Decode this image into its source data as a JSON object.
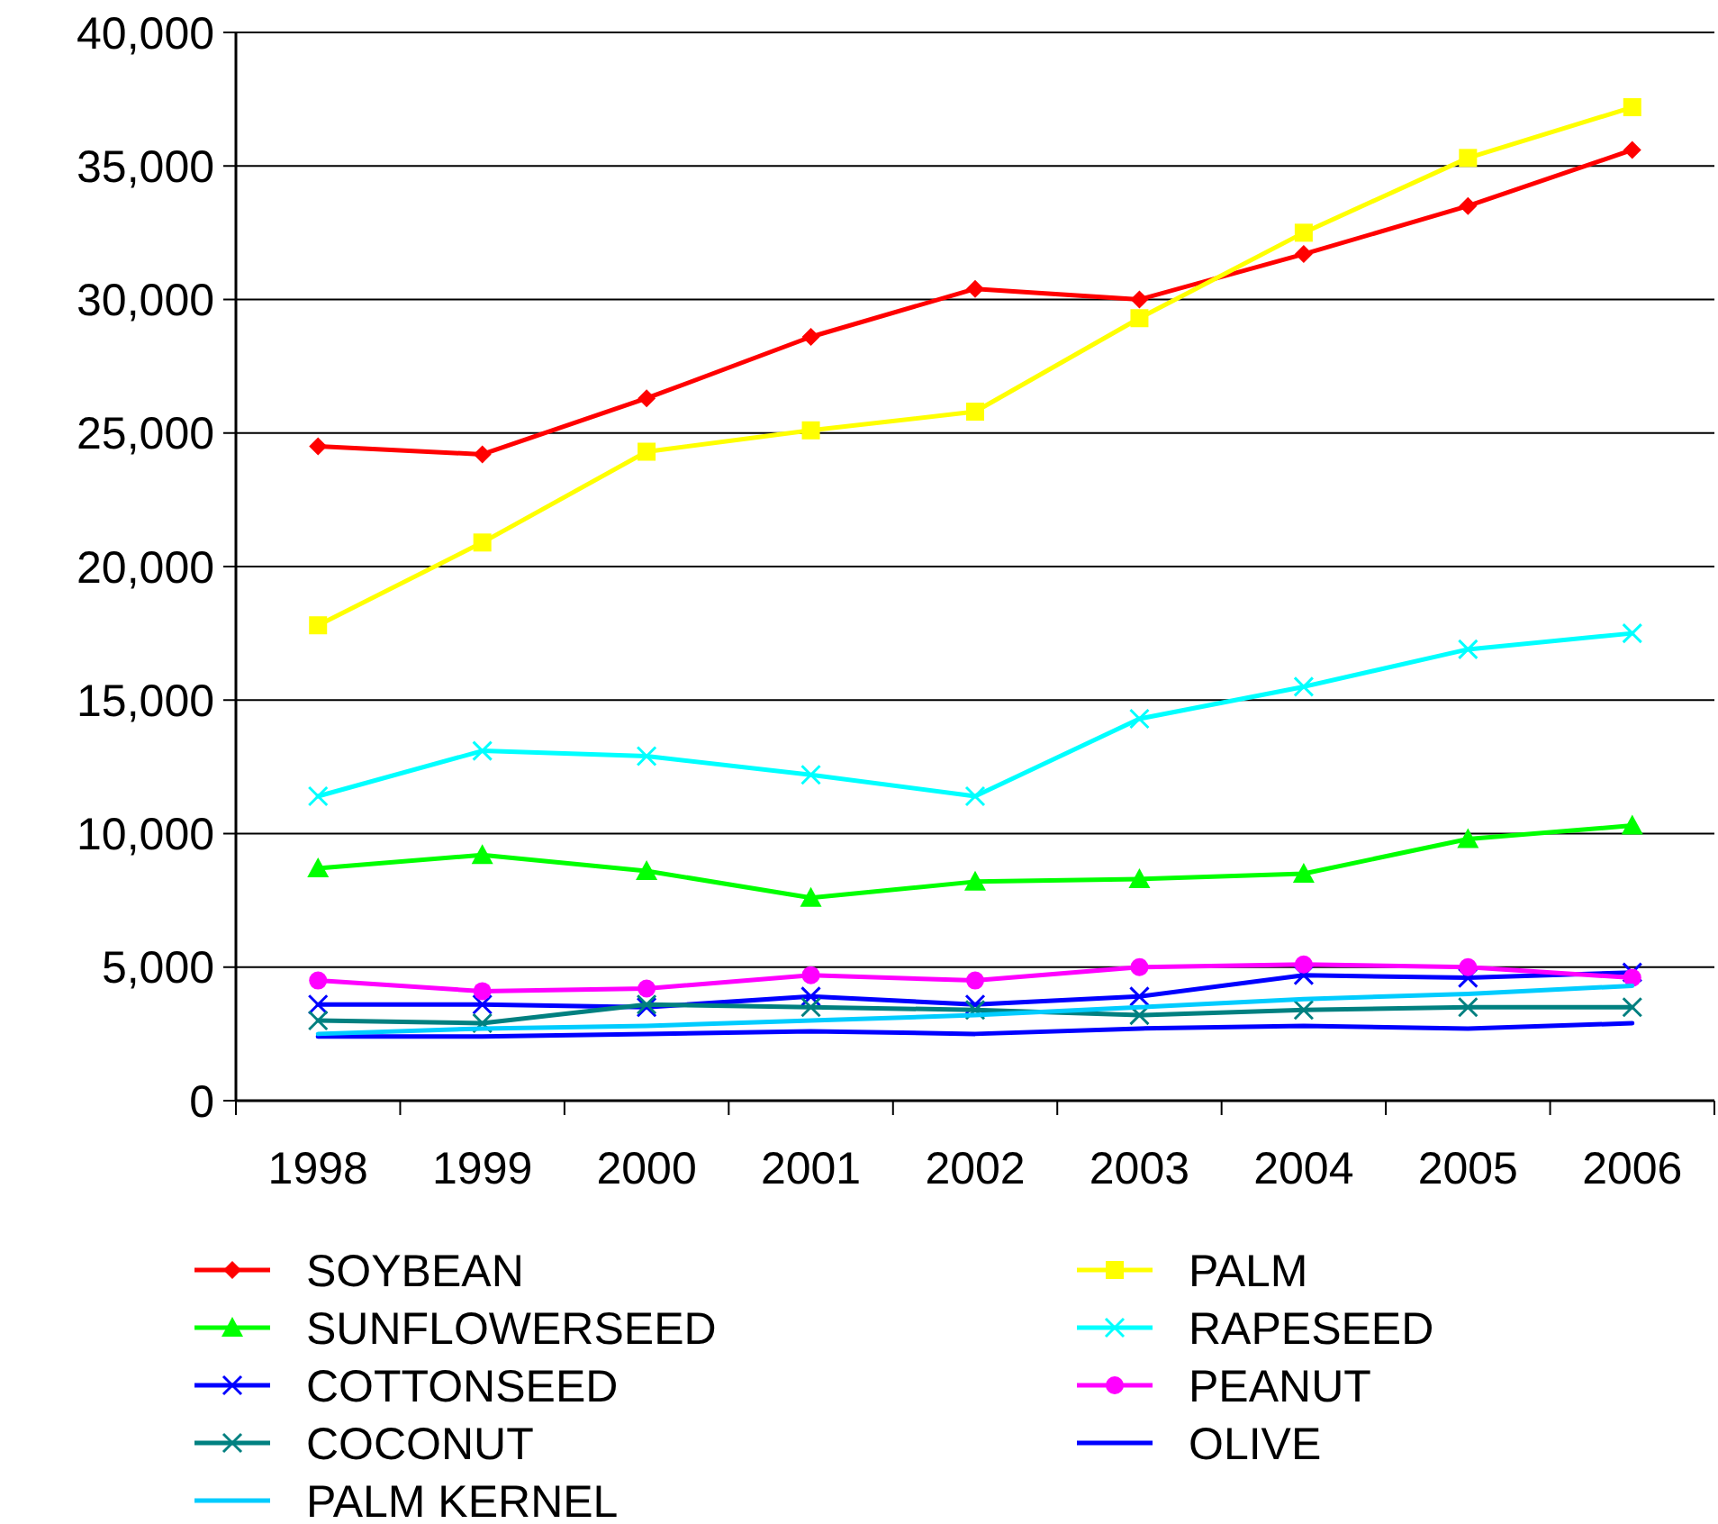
{
  "chart_data": {
    "type": "line",
    "categories": [
      "1998",
      "1999",
      "2000",
      "2001",
      "2002",
      "2003",
      "2004",
      "2005",
      "2006"
    ],
    "ylim": [
      0,
      40000
    ],
    "yticks": [
      0,
      {
        "value": 5000,
        "label": "5,000"
      },
      {
        "value": 10000,
        "label": "10,000"
      },
      {
        "value": 15000,
        "label": "15,000"
      },
      {
        "value": 20000,
        "label": "20,000"
      },
      {
        "value": 25000,
        "label": "25,000"
      },
      {
        "value": 30000,
        "label": "30,000"
      },
      {
        "value": 35000,
        "label": "35,000"
      },
      {
        "value": 40000,
        "label": "40,000"
      }
    ],
    "grid": "y",
    "legend": "bottom",
    "series": [
      {
        "name": "SOYBEAN",
        "color": "#ff0000",
        "marker": "diamond",
        "values": [
          24500,
          24200,
          26300,
          28600,
          30400,
          30000,
          31700,
          33500,
          35600
        ]
      },
      {
        "name": "PALM",
        "color": "#ffff00",
        "marker": "square",
        "values": [
          17800,
          20900,
          24300,
          25100,
          25800,
          29300,
          32500,
          35300,
          37200
        ]
      },
      {
        "name": "SUNFLOWERSEED",
        "color": "#00ff00",
        "marker": "triangle",
        "values": [
          8700,
          9200,
          8600,
          7600,
          8200,
          8300,
          8500,
          9800,
          10300
        ]
      },
      {
        "name": "RAPESEED",
        "color": "#00ffff",
        "marker": "cross",
        "values": [
          11400,
          13100,
          12900,
          12200,
          11400,
          14300,
          15500,
          16900,
          17500
        ]
      },
      {
        "name": "COTTONSEED",
        "color": "#0000ff",
        "marker": "cross",
        "values": [
          3600,
          3600,
          3500,
          3900,
          3600,
          3900,
          4700,
          4600,
          4800
        ]
      },
      {
        "name": "PEANUT",
        "color": "#ff00ff",
        "marker": "circle",
        "values": [
          4500,
          4100,
          4200,
          4700,
          4500,
          5000,
          5100,
          5000,
          4600
        ]
      },
      {
        "name": "COCONUT",
        "color": "#008080",
        "marker": "cross",
        "values": [
          3000,
          2900,
          3600,
          3500,
          3400,
          3200,
          3400,
          3500,
          3500
        ]
      },
      {
        "name": "OLIVE",
        "color": "#0000ff",
        "marker": "none",
        "values": [
          2400,
          2400,
          2500,
          2600,
          2500,
          2700,
          2800,
          2700,
          2900
        ]
      },
      {
        "name": "PALM KERNEL",
        "color": "#00ccff",
        "marker": "none",
        "values": [
          2500,
          2700,
          2800,
          3000,
          3200,
          3500,
          3800,
          4000,
          4300
        ]
      }
    ]
  }
}
